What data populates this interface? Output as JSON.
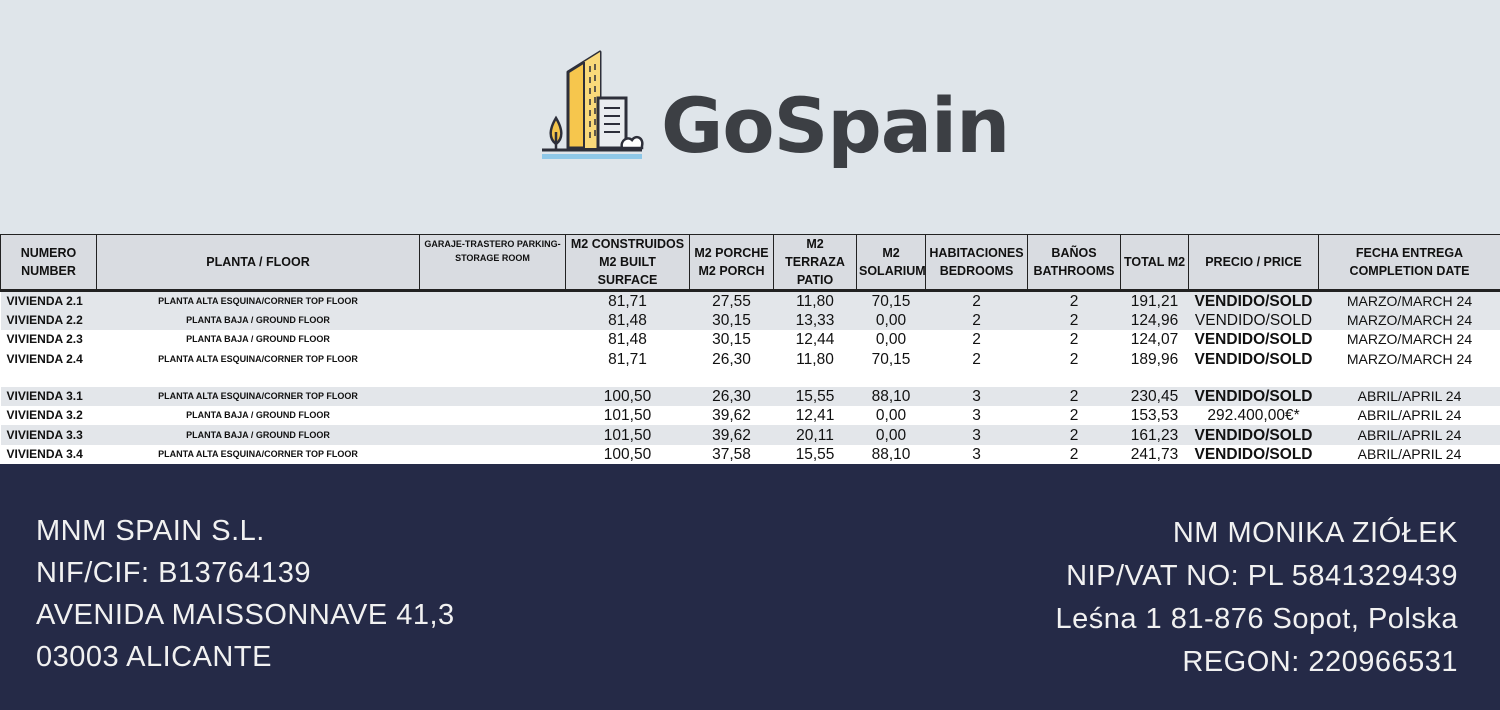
{
  "brand": {
    "name": "GoSpain"
  },
  "table": {
    "headers": [
      "NUMERO NUMBER",
      "PLANTA /  FLOOR",
      "GARAJE-TRASTERO PARKING-STORAGE ROOM",
      "M2 CONSTRUIDOS M2 BUILT SURFACE",
      "M2 PORCHE M2 PORCH",
      "M2 TERRAZA PATIO",
      "M2 SOLARIUM",
      "HABITACIONES BEDROOMS",
      "BAÑOS BATHROOMS",
      "TOTAL M2",
      "PRECIO / PRICE",
      "FECHA ENTREGA COMPLETION DATE"
    ],
    "rows": [
      {
        "number": "VIVIENDA  2.1",
        "floor": "PLANTA ALTA ESQUINA/CORNER TOP FLOOR",
        "garage": "",
        "built": "81,71",
        "porch": "27,55",
        "terrace": "11,80",
        "solarium": "70,15",
        "bedrooms": "2",
        "bathrooms": "2",
        "total": "191,21",
        "price": "VENDIDO/SOLD",
        "date": "MARZO/MARCH 24"
      },
      {
        "number": "VIVIENDA  2.2",
        "floor": "PLANTA BAJA / GROUND FLOOR",
        "garage": "",
        "built": "81,48",
        "porch": "30,15",
        "terrace": "13,33",
        "solarium": "0,00",
        "bedrooms": "2",
        "bathrooms": "2",
        "total": "124,96",
        "price": "VENDIDO/SOLD",
        "date": "MARZO/MARCH 24"
      },
      {
        "number": "VIVIENDA 2.3",
        "floor": "PLANTA BAJA / GROUND FLOOR",
        "garage": "",
        "built": "81,48",
        "porch": "30,15",
        "terrace": "12,44",
        "solarium": "0,00",
        "bedrooms": "2",
        "bathrooms": "2",
        "total": "124,07",
        "price": "VENDIDO/SOLD",
        "date": "MARZO/MARCH 24"
      },
      {
        "number": "VIVIENDA  2.4",
        "floor": "PLANTA ALTA ESQUINA/CORNER TOP FLOOR",
        "garage": "",
        "built": "81,71",
        "porch": "26,30",
        "terrace": "11,80",
        "solarium": "70,15",
        "bedrooms": "2",
        "bathrooms": "2",
        "total": "189,96",
        "price": "VENDIDO/SOLD",
        "date": "MARZO/MARCH 24"
      },
      {
        "number": "VIVIENDA 3.1",
        "floor": "PLANTA ALTA ESQUINA/CORNER TOP FLOOR",
        "garage": "",
        "built": "100,50",
        "porch": "26,30",
        "terrace": "15,55",
        "solarium": "88,10",
        "bedrooms": "3",
        "bathrooms": "2",
        "total": "230,45",
        "price": "VENDIDO/SOLD",
        "date": "ABRIL/APRIL 24"
      },
      {
        "number": "VIVIENDA 3.2",
        "floor": "PLANTA BAJA /  GROUND FLOOR",
        "garage": "",
        "built": "101,50",
        "porch": "39,62",
        "terrace": "12,41",
        "solarium": "0,00",
        "bedrooms": "3",
        "bathrooms": "2",
        "total": "153,53",
        "price": "292.400,00€*",
        "date": "ABRIL/APRIL 24"
      },
      {
        "number": "VIVIENDA 3.3",
        "floor": "PLANTA BAJA / GROUND FLOOR",
        "garage": "",
        "built": "101,50",
        "porch": "39,62",
        "terrace": "20,11",
        "solarium": "0,00",
        "bedrooms": "3",
        "bathrooms": "2",
        "total": "161,23",
        "price": "VENDIDO/SOLD",
        "date": "ABRIL/APRIL 24"
      },
      {
        "number": "VIVIENDA 3.4",
        "floor": "PLANTA ALTA ESQUINA/CORNER TOP FLOOR",
        "garage": "",
        "built": "100,50",
        "porch": "37,58",
        "terrace": "15,55",
        "solarium": "88,10",
        "bedrooms": "3",
        "bathrooms": "2",
        "total": "241,73",
        "price": "VENDIDO/SOLD",
        "date": "ABRIL/APRIL 24"
      }
    ]
  },
  "footer": {
    "left": [
      "MNM SPAIN S.L.",
      "NIF/CIF: B13764139",
      "AVENIDA MAISSONNAVE 41,3",
      "03003 ALICANTE"
    ],
    "right": [
      "NM MONIKA ZIÓŁEK",
      "NIP/VAT NO: PL 5841329439",
      "Leśna 1 81-876 Sopot, Polska",
      "REGON: 220966531"
    ]
  }
}
